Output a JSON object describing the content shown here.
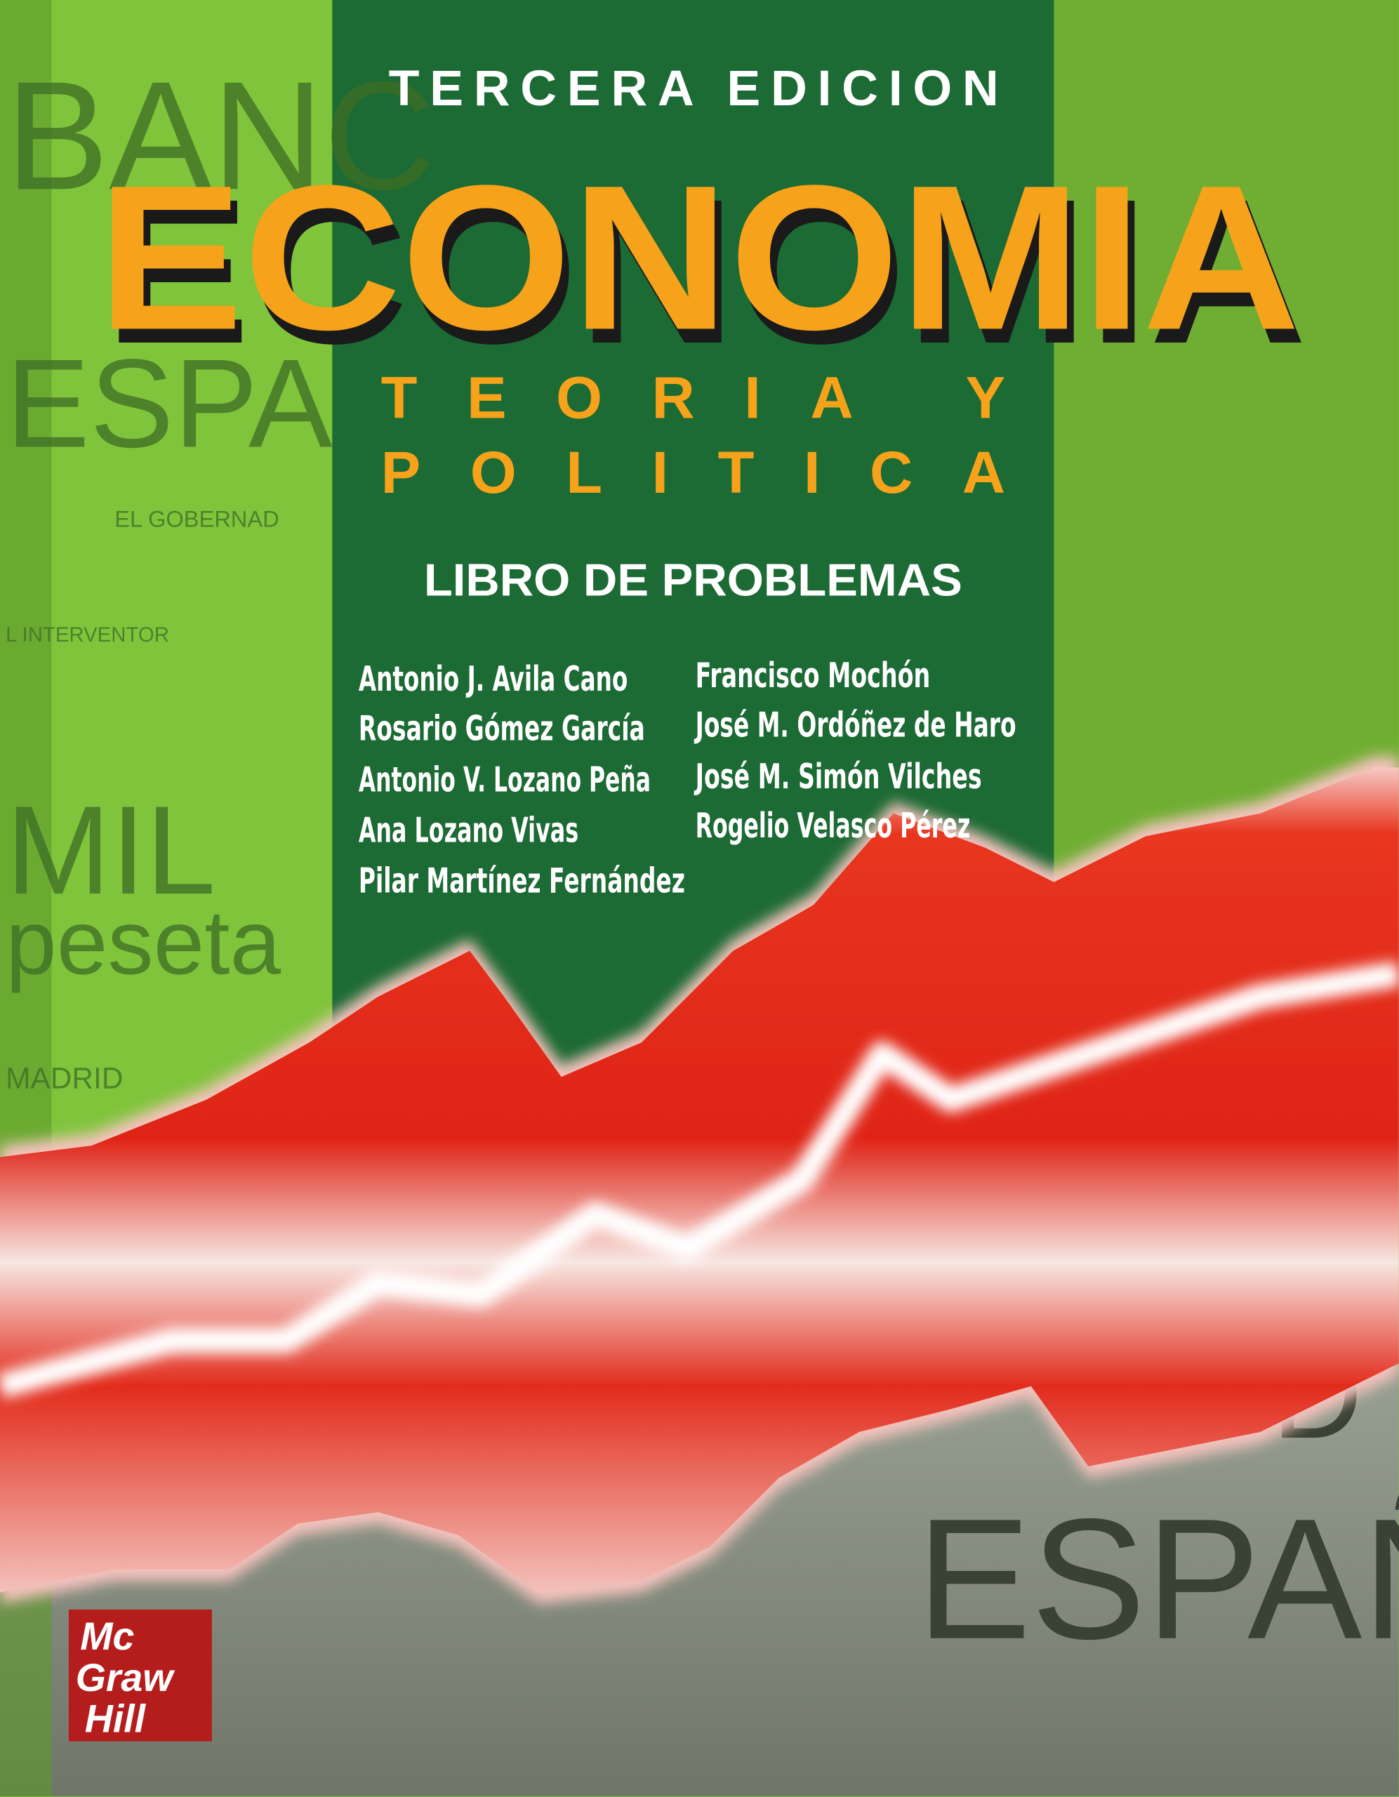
{
  "edition": "TERCERA EDICION",
  "title": "ECONOMIA",
  "subtitle": [
    "TEORIA Y",
    "POLITICA"
  ],
  "series_title": "LIBRO DE PROBLEMAS",
  "authors": {
    "left": [
      "Antonio J. Avila Cano",
      "Rosario Gómez García",
      "Antonio V. Lozano Peña",
      "Ana Lozano Vivas",
      "Pilar Martínez Fernández"
    ],
    "right": [
      "Francisco Mochón",
      "José M. Ordóñez de Haro",
      "José M. Simón Vilches",
      "Rogelio Velasco Pérez"
    ]
  },
  "publisher": [
    "Mc",
    "Graw",
    "Hill"
  ],
  "background_text": [
    "BANC",
    "ESPA",
    "EL GOBERNAD",
    "L INTERVENTOR",
    "MIL",
    "peseta",
    "MADRID",
    "D",
    "ESPAÑ"
  ]
}
